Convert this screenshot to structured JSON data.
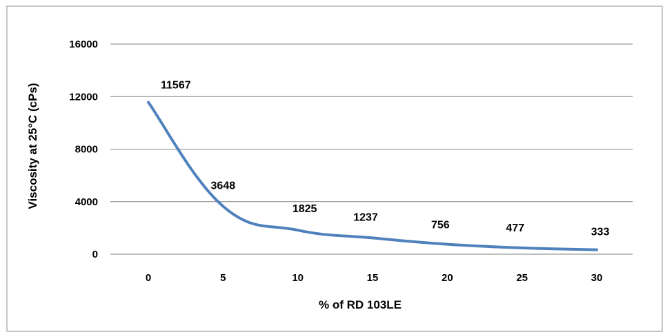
{
  "chart_data": {
    "type": "line",
    "title": "",
    "xlabel": "% of RD 103LE",
    "ylabel": "Viscosity at 25°C (cPs)",
    "x": [
      0,
      5,
      10,
      15,
      20,
      25,
      30
    ],
    "series": [
      {
        "values": [
          11567,
          3648,
          1825,
          1237,
          756,
          477,
          333
        ],
        "color": "#4f81bd"
      }
    ],
    "data_labels": [
      "11567",
      "3648",
      "1825",
      "1237",
      "756",
      "477",
      "333"
    ],
    "xticks": [
      "0",
      "5",
      "10",
      "15",
      "20",
      "25",
      "30"
    ],
    "yticks": [
      "0",
      "4000",
      "8000",
      "12000",
      "16000"
    ],
    "xlim": [
      0,
      30
    ],
    "ylim": [
      0,
      16000
    ],
    "grid": true,
    "legend": "none",
    "colors": {
      "line": "#4f81bd",
      "grid": "#7f7f7f",
      "frame": "#8c8c8c",
      "text": "#000000"
    }
  }
}
